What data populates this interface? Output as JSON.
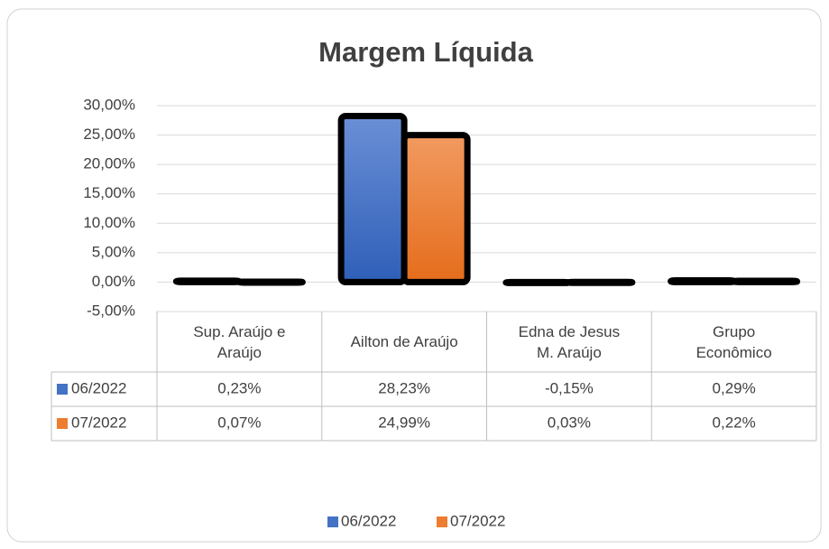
{
  "chart_data": {
    "type": "bar",
    "title": "Margem Líquida",
    "categories": [
      "Sup. Araújo e Araújo",
      "Ailton de Araújo",
      "Edna de Jesus M. Araújo",
      "Grupo Econômico"
    ],
    "series": [
      {
        "name": "06/2022",
        "color": "#4472c4",
        "values": [
          0.23,
          28.23,
          -0.15,
          0.29
        ],
        "value_labels": [
          "0,23%",
          "28,23%",
          "-0,15%",
          "0,29%"
        ]
      },
      {
        "name": "07/2022",
        "color": "#ed7d31",
        "values": [
          0.07,
          24.99,
          0.03,
          0.22
        ],
        "value_labels": [
          "0,07%",
          "24,99%",
          "0,03%",
          "0,22%"
        ]
      }
    ],
    "ylim": [
      -5,
      30
    ],
    "yticks": [
      {
        "value": -5,
        "label": "-5,00%"
      },
      {
        "value": 0,
        "label": "0,00%"
      },
      {
        "value": 5,
        "label": "5,00%"
      },
      {
        "value": 10,
        "label": "10,00%"
      },
      {
        "value": 15,
        "label": "15,00%"
      },
      {
        "value": 20,
        "label": "20,00%"
      },
      {
        "value": 25,
        "label": "25,00%"
      },
      {
        "value": 30,
        "label": "30,00%"
      }
    ],
    "grid": true,
    "legend": "bottom"
  }
}
